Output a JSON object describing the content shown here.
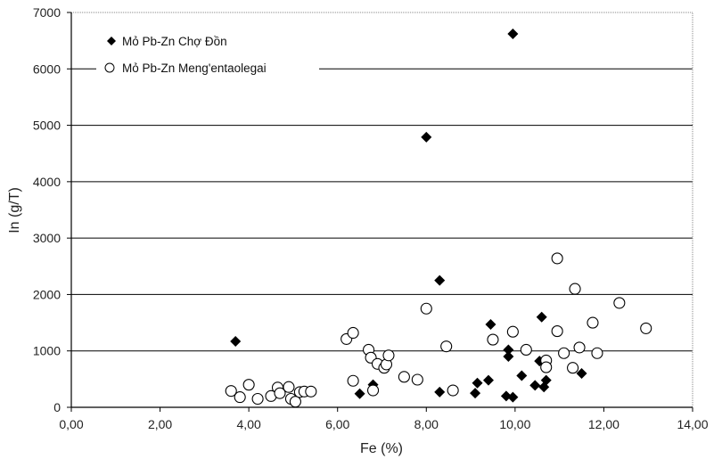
{
  "chart_data": {
    "type": "scatter",
    "title": "",
    "xlabel": "Fe (%)",
    "ylabel": "In (g/T)",
    "xlim": [
      0,
      14
    ],
    "ylim": [
      0,
      7000
    ],
    "x_ticks": [
      0,
      2,
      4,
      6,
      8,
      10,
      12,
      14
    ],
    "x_tick_labels": [
      "0,00",
      "2,00",
      "4,00",
      "6,00",
      "8,00",
      "10,00",
      "12,00",
      "14,00"
    ],
    "y_ticks": [
      0,
      1000,
      2000,
      3000,
      4000,
      5000,
      6000,
      7000
    ],
    "y_tick_labels": [
      "0",
      "1000",
      "2000",
      "3000",
      "4000",
      "5000",
      "6000",
      "7000"
    ],
    "grid": "horizontal",
    "legend_position": "top-left",
    "series": [
      {
        "name": "Mỏ Pb-Zn Chợ Đồn",
        "marker": "filled-diamond",
        "color": "#000000",
        "points": [
          {
            "x": 3.7,
            "y": 1170
          },
          {
            "x": 4.95,
            "y": 130
          },
          {
            "x": 6.5,
            "y": 240
          },
          {
            "x": 6.8,
            "y": 400
          },
          {
            "x": 8.0,
            "y": 4790
          },
          {
            "x": 8.3,
            "y": 2250
          },
          {
            "x": 8.3,
            "y": 270
          },
          {
            "x": 9.1,
            "y": 250
          },
          {
            "x": 9.15,
            "y": 430
          },
          {
            "x": 9.4,
            "y": 480
          },
          {
            "x": 9.45,
            "y": 1470
          },
          {
            "x": 9.8,
            "y": 200
          },
          {
            "x": 9.85,
            "y": 1020
          },
          {
            "x": 9.85,
            "y": 900
          },
          {
            "x": 9.95,
            "y": 180
          },
          {
            "x": 9.95,
            "y": 6620
          },
          {
            "x": 10.15,
            "y": 560
          },
          {
            "x": 10.45,
            "y": 390
          },
          {
            "x": 10.55,
            "y": 820
          },
          {
            "x": 10.6,
            "y": 1600
          },
          {
            "x": 10.65,
            "y": 360
          },
          {
            "x": 10.7,
            "y": 480
          },
          {
            "x": 11.5,
            "y": 600
          }
        ]
      },
      {
        "name": "Mỏ Pb-Zn Meng'entaolegai",
        "marker": "open-circle",
        "color": "#000000",
        "points": [
          {
            "x": 3.6,
            "y": 290
          },
          {
            "x": 3.8,
            "y": 180
          },
          {
            "x": 4.0,
            "y": 400
          },
          {
            "x": 4.2,
            "y": 150
          },
          {
            "x": 4.5,
            "y": 200
          },
          {
            "x": 4.65,
            "y": 350
          },
          {
            "x": 4.7,
            "y": 250
          },
          {
            "x": 4.9,
            "y": 360
          },
          {
            "x": 4.95,
            "y": 150
          },
          {
            "x": 5.05,
            "y": 100
          },
          {
            "x": 5.15,
            "y": 270
          },
          {
            "x": 5.25,
            "y": 280
          },
          {
            "x": 5.4,
            "y": 280
          },
          {
            "x": 6.2,
            "y": 1210
          },
          {
            "x": 6.35,
            "y": 1320
          },
          {
            "x": 6.35,
            "y": 470
          },
          {
            "x": 6.7,
            "y": 1020
          },
          {
            "x": 6.75,
            "y": 880
          },
          {
            "x": 6.8,
            "y": 300
          },
          {
            "x": 6.9,
            "y": 770
          },
          {
            "x": 7.05,
            "y": 700
          },
          {
            "x": 7.1,
            "y": 760
          },
          {
            "x": 7.15,
            "y": 920
          },
          {
            "x": 7.5,
            "y": 540
          },
          {
            "x": 7.8,
            "y": 490
          },
          {
            "x": 8.0,
            "y": 1750
          },
          {
            "x": 8.45,
            "y": 1080
          },
          {
            "x": 8.6,
            "y": 300
          },
          {
            "x": 9.5,
            "y": 1200
          },
          {
            "x": 9.95,
            "y": 1340
          },
          {
            "x": 10.25,
            "y": 1020
          },
          {
            "x": 10.7,
            "y": 830
          },
          {
            "x": 10.7,
            "y": 710
          },
          {
            "x": 10.95,
            "y": 2640
          },
          {
            "x": 10.95,
            "y": 1350
          },
          {
            "x": 11.1,
            "y": 960
          },
          {
            "x": 11.3,
            "y": 700
          },
          {
            "x": 11.35,
            "y": 2100
          },
          {
            "x": 11.45,
            "y": 1060
          },
          {
            "x": 11.75,
            "y": 1500
          },
          {
            "x": 11.85,
            "y": 960
          },
          {
            "x": 12.35,
            "y": 1850
          },
          {
            "x": 12.95,
            "y": 1400
          }
        ]
      }
    ]
  }
}
